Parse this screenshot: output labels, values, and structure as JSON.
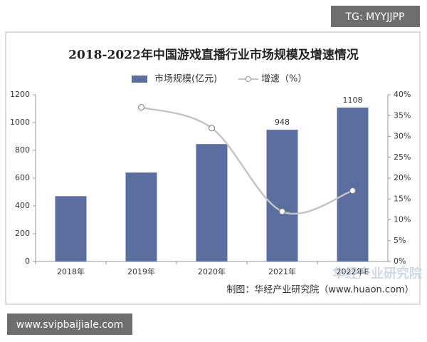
{
  "watermark_top": "TG: MYYJJPP",
  "watermark_bottom": "www.svipbaijiale.com",
  "chart_data": {
    "type": "bar",
    "title": "2018-2022年中国游戏直播行业市场规模及增速情况",
    "categories": [
      "2018年",
      "2019年",
      "2020年",
      "2021年",
      "2022年E"
    ],
    "series": [
      {
        "name": "市场规模(亿元)",
        "color": "#5a6e9f",
        "type": "bar",
        "values": [
          470,
          640,
          845,
          948,
          1108
        ],
        "value_labels": [
          null,
          null,
          null,
          "948",
          "1108"
        ]
      },
      {
        "name": "增速（%）",
        "color": "#c4c4c4",
        "type": "line",
        "axis": "y2",
        "values": [
          null,
          37,
          32,
          12,
          17
        ]
      }
    ],
    "ylim": [
      0,
      1200
    ],
    "yticks": [
      0,
      200,
      400,
      600,
      800,
      1000,
      1200
    ],
    "y2lim": [
      0,
      40
    ],
    "y2ticks": [
      {
        "value": 0,
        "label": "0%"
      },
      {
        "value": 5,
        "label": "5%"
      },
      {
        "value": 10,
        "label": "10%"
      },
      {
        "value": 15,
        "label": "15%"
      },
      {
        "value": 20,
        "label": "20%"
      },
      {
        "value": 25,
        "label": "25%"
      },
      {
        "value": 30,
        "label": "30%"
      },
      {
        "value": 35,
        "label": "35%"
      },
      {
        "value": 40,
        "label": "40%"
      }
    ],
    "source": "制图：华经产业研究院（www.huaon.com）",
    "brand": "华经产业研究院"
  }
}
